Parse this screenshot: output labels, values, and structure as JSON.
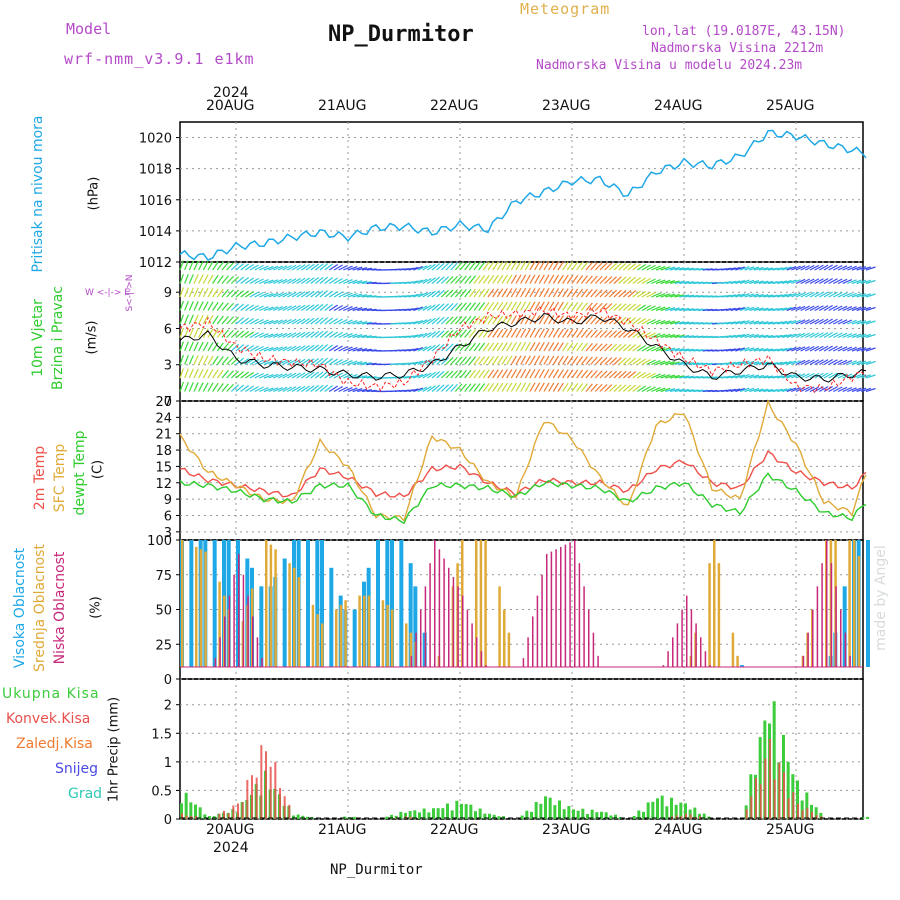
{
  "header": {
    "model_label": "Model",
    "model_name": "wrf-nmm_v3.9.1 e1km",
    "station": "NP_Durmitor",
    "product": "Meteogram",
    "lonlat": "lon,lat (19.0187E, 43.15N)",
    "altitude": "Nadmorska Visina 2212m",
    "model_altitude": "Nadmorska Visina u modelu 2024.23m"
  },
  "footer": {
    "station": "NP_Durmitor",
    "credit": "made by Angel"
  },
  "colors": {
    "pressure": "#1ea8e6",
    "temp2m": "#f0504a",
    "sfc": "#e0aa38",
    "dewpt": "#2ecc2e",
    "high_cloud": "#1ea8e6",
    "mid_cloud": "#e0aa38",
    "low_cloud": "#c8287a",
    "total_precip": "#3ccc3c",
    "conv_precip": "#e8504c",
    "frozen": "#f07a30",
    "snow": "#4a4ae6",
    "graupel": "#2ec8b4",
    "wind_speed": "#000000",
    "wind_gust": "#ff2020"
  },
  "time_axis": {
    "year": "2024",
    "labels": [
      "20AUG",
      "21AUG",
      "22AUG",
      "23AUG",
      "24AUG",
      "25AUG"
    ]
  },
  "panels": {
    "pressure": {
      "label": "Pritisak na nivou mora",
      "unit": "(hPa)",
      "ticks": [
        "1012",
        "1014",
        "1016",
        "1018",
        "1020"
      ]
    },
    "wind": {
      "label1": "10m Vjetar",
      "label2": "Brzina i Pravac",
      "unit": "(m/s)",
      "compass": "W <-|-> E",
      "compass2": "S<-|->N",
      "ticks": [
        "0",
        "3",
        "6",
        "9"
      ]
    },
    "temp": {
      "label1": "2m Temp",
      "label2": "SFC Temp",
      "label3": "dewpt Temp",
      "unit": "(C)",
      "ticks": [
        "3",
        "6",
        "9",
        "12",
        "15",
        "18",
        "21",
        "24",
        "27"
      ]
    },
    "cloud": {
      "label1": "Visoka Oblacnost",
      "label2": "Srednja Oblacnost",
      "label3": "Niska Oblacnost",
      "unit": "(%)",
      "ticks": [
        "0",
        "25",
        "50",
        "75",
        "100"
      ]
    },
    "precip": {
      "legend": [
        "Ukupna Kisa",
        "Konvek.Kisa",
        "Zaledj.Kisa",
        "Snijeg",
        "Grad"
      ],
      "unit": "1hr Precip (mm)",
      "ticks": [
        "0",
        "0.5",
        "1",
        "1.5",
        "2"
      ]
    }
  },
  "chart_data": [
    {
      "type": "line",
      "ylabel": "(hPa)",
      "ylim": [
        1012,
        1021
      ],
      "x_hours": [
        0,
        6,
        12,
        18,
        24,
        30,
        36,
        42,
        48,
        54,
        60,
        66,
        72,
        78,
        84,
        90,
        96,
        102,
        108,
        114,
        120,
        126,
        132,
        138,
        144,
        150
      ],
      "series": [
        {
          "values": [
            1012.5,
            1012.3,
            1013.0,
            1013.2,
            1013.6,
            1013.9,
            1013.6,
            1014.2,
            1014.3,
            1013.9,
            1014.4,
            1014.1,
            1015.9,
            1016.5,
            1017.2,
            1017.3,
            1016.3,
            1017.8,
            1018.4,
            1018.2,
            1018.8,
            1020.3,
            1020.1,
            1019.6,
            1019.2,
            1018.7
          ]
        }
      ]
    },
    {
      "type": "line",
      "ylabel": "(m/s)",
      "ylim": [
        0,
        11.5
      ],
      "x_hours": [
        0,
        6,
        12,
        18,
        24,
        30,
        36,
        42,
        48,
        54,
        60,
        66,
        72,
        78,
        84,
        90,
        96,
        102,
        108,
        114,
        120,
        126,
        132,
        138,
        144,
        150
      ],
      "series": [
        {
          "values": [
            5.0,
            5.5,
            3.5,
            3.0,
            2.8,
            2.6,
            2.2,
            2.0,
            2.2,
            3.0,
            4.5,
            6.0,
            6.5,
            7.0,
            6.5,
            7.0,
            6.0,
            4.5,
            3.0,
            2.0,
            2.5,
            3.0,
            2.0,
            1.8,
            2.2,
            2.5
          ]
        },
        {
          "values": [
            6.0,
            6.5,
            4.5,
            3.5,
            3.2,
            3.0,
            1.5,
            1.2,
            1.5,
            3.5,
            6.0,
            7.0,
            7.2,
            7.5,
            7.0,
            7.5,
            6.5,
            5.0,
            3.5,
            2.5,
            3.0,
            3.5,
            1.2,
            1.0,
            2.0,
            2.8
          ]
        }
      ],
      "wind_direction_deg": [
        200,
        210,
        230,
        250,
        240,
        230,
        250,
        270,
        260,
        230,
        220,
        215,
        210,
        210,
        215,
        225,
        230,
        250,
        260,
        265,
        250,
        260,
        245,
        240,
        250,
        255
      ]
    },
    {
      "type": "line",
      "ylabel": "(C)",
      "ylim": [
        1.5,
        27
      ],
      "x_hours": [
        0,
        6,
        12,
        18,
        24,
        30,
        36,
        42,
        48,
        54,
        60,
        66,
        72,
        78,
        84,
        90,
        96,
        102,
        108,
        114,
        120,
        126,
        132,
        138,
        144,
        150
      ],
      "series": [
        {
          "name": "2m Temp",
          "values": [
            14.5,
            12.5,
            11.5,
            10.5,
            9.5,
            14.5,
            13.0,
            10.0,
            9.5,
            14.5,
            15.0,
            12.0,
            10.0,
            12.5,
            12.0,
            12.0,
            10.5,
            14.5,
            16.0,
            12.0,
            11.0,
            17.5,
            14.0,
            12.0,
            11.0,
            16.5
          ]
        },
        {
          "name": "SFC Temp",
          "values": [
            20.5,
            14.0,
            11.5,
            9.0,
            8.5,
            19.5,
            15.0,
            6.0,
            5.5,
            20.5,
            18.0,
            12.0,
            9.5,
            23.5,
            20.0,
            13.0,
            7.5,
            22.5,
            25.0,
            11.0,
            9.0,
            26.5,
            19.0,
            8.5,
            6.5,
            21.0
          ]
        },
        {
          "name": "dewpt Temp",
          "values": [
            12.0,
            11.5,
            10.5,
            9.0,
            8.5,
            11.5,
            11.5,
            6.0,
            5.0,
            11.5,
            11.5,
            11.0,
            9.5,
            12.0,
            11.5,
            11.0,
            8.5,
            11.0,
            12.0,
            8.0,
            6.5,
            13.5,
            10.5,
            6.5,
            5.5,
            11.5
          ]
        }
      ]
    },
    {
      "type": "bar",
      "ylabel": "(%)",
      "ylim": [
        0,
        100
      ],
      "x_hours": [
        0,
        6,
        12,
        18,
        24,
        30,
        36,
        42,
        48,
        54,
        60,
        66,
        72,
        78,
        84,
        90,
        96,
        102,
        108,
        114,
        120,
        126,
        132,
        138,
        144,
        150
      ],
      "series": [
        {
          "name": "Visoka Oblacnost",
          "values": [
            100,
            100,
            100,
            60,
            100,
            100,
            40,
            100,
            100,
            0,
            0,
            0,
            0,
            0,
            0,
            0,
            0,
            0,
            0,
            0,
            10,
            0,
            0,
            0,
            100,
            100
          ]
        },
        {
          "name": "Srednja Oblacnost",
          "values": [
            100,
            90,
            30,
            100,
            80,
            40,
            60,
            60,
            40,
            0,
            100,
            100,
            0,
            0,
            0,
            0,
            0,
            0,
            0,
            100,
            0,
            0,
            0,
            100,
            100,
            30
          ]
        },
        {
          "name": "Niska Oblacnost",
          "values": [
            0,
            0,
            90,
            0,
            0,
            0,
            0,
            0,
            0,
            100,
            60,
            0,
            0,
            90,
            100,
            0,
            0,
            0,
            60,
            0,
            0,
            0,
            0,
            100,
            0,
            0
          ]
        }
      ]
    },
    {
      "type": "bar",
      "ylabel": "1hr Precip (mm)",
      "ylim": [
        0,
        2.45
      ],
      "x_hours": [
        0,
        6,
        12,
        18,
        24,
        30,
        36,
        42,
        48,
        54,
        60,
        66,
        72,
        78,
        84,
        90,
        96,
        102,
        108,
        114,
        120,
        126,
        132,
        138,
        144,
        150
      ],
      "series": [
        {
          "name": "Ukupna Kisa",
          "values": [
            0.55,
            0.05,
            0.2,
            0.85,
            0.1,
            0.0,
            0.05,
            0.0,
            0.15,
            0.2,
            0.35,
            0.1,
            0.0,
            0.45,
            0.2,
            0.15,
            0.0,
            0.45,
            0.3,
            0.0,
            0.0,
            2.35,
            0.7,
            0.0,
            0.0,
            0.1
          ]
        },
        {
          "name": "Konvek.Kisa",
          "values": [
            0.1,
            0.0,
            0.3,
            1.5,
            0.0,
            0.0,
            0.0,
            0.0,
            0.05,
            0.0,
            0.0,
            0.0,
            0.0,
            0.0,
            0.0,
            0.0,
            0.0,
            0.0,
            0.1,
            0.0,
            0.0,
            1.45,
            0.3,
            0.0,
            0.0,
            0.0
          ]
        }
      ]
    }
  ]
}
